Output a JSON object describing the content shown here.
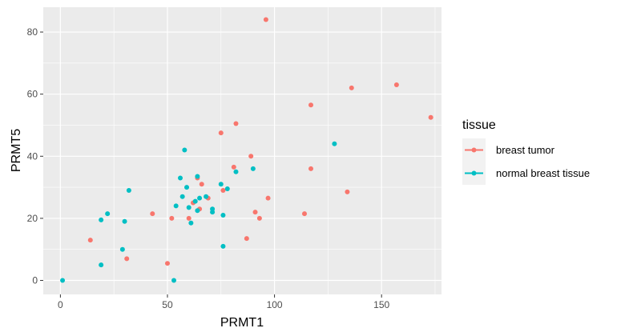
{
  "chart_data": {
    "type": "scatter",
    "xlabel": "PRMT1",
    "ylabel": "PRMT5",
    "xlim": [
      -8,
      178
    ],
    "ylim": [
      -4.5,
      88
    ],
    "x_ticks": [
      0,
      50,
      100,
      150
    ],
    "y_ticks": [
      0,
      20,
      40,
      60,
      80
    ],
    "x_tick_labels": [
      "0",
      "50",
      "100",
      "150"
    ],
    "y_tick_labels": [
      "0",
      "20",
      "40",
      "60",
      "80"
    ],
    "grid": true,
    "legend": {
      "title": "tissue",
      "position": "right"
    },
    "series": [
      {
        "name": "breast tumor",
        "color": "#F8766D",
        "points": [
          [
            96,
            84
          ],
          [
            157,
            63
          ],
          [
            136,
            62
          ],
          [
            117,
            56.5
          ],
          [
            173,
            52.5
          ],
          [
            82,
            50.5
          ],
          [
            75,
            47.5
          ],
          [
            89,
            40
          ],
          [
            81,
            36.5
          ],
          [
            117,
            36
          ],
          [
            64,
            33
          ],
          [
            66,
            31
          ],
          [
            62,
            25
          ],
          [
            69,
            26.5
          ],
          [
            76,
            29
          ],
          [
            97,
            26.5
          ],
          [
            134,
            28.5
          ],
          [
            91,
            22
          ],
          [
            93,
            20
          ],
          [
            114,
            21.5
          ],
          [
            43,
            21.5
          ],
          [
            52,
            20
          ],
          [
            60,
            20
          ],
          [
            65,
            23
          ],
          [
            14,
            13
          ],
          [
            87,
            13.5
          ],
          [
            31,
            7
          ],
          [
            50,
            5.5
          ]
        ]
      },
      {
        "name": "normal breast tissue",
        "color": "#00BFC4",
        "points": [
          [
            1,
            0
          ],
          [
            19,
            5
          ],
          [
            53,
            0
          ],
          [
            29,
            10
          ],
          [
            30,
            19
          ],
          [
            19,
            19.5
          ],
          [
            22,
            21.5
          ],
          [
            32,
            29
          ],
          [
            56,
            33
          ],
          [
            58,
            42
          ],
          [
            59,
            30
          ],
          [
            57,
            27
          ],
          [
            54,
            24
          ],
          [
            60,
            23.5
          ],
          [
            61,
            18.5
          ],
          [
            64,
            22.5
          ],
          [
            63,
            25.5
          ],
          [
            65,
            26.5
          ],
          [
            64,
            33.5
          ],
          [
            68,
            27
          ],
          [
            71,
            23
          ],
          [
            71,
            22
          ],
          [
            75,
            31
          ],
          [
            76,
            21
          ],
          [
            78,
            29.5
          ],
          [
            82,
            35
          ],
          [
            90,
            36
          ],
          [
            128,
            44
          ],
          [
            76,
            11
          ]
        ]
      }
    ]
  }
}
